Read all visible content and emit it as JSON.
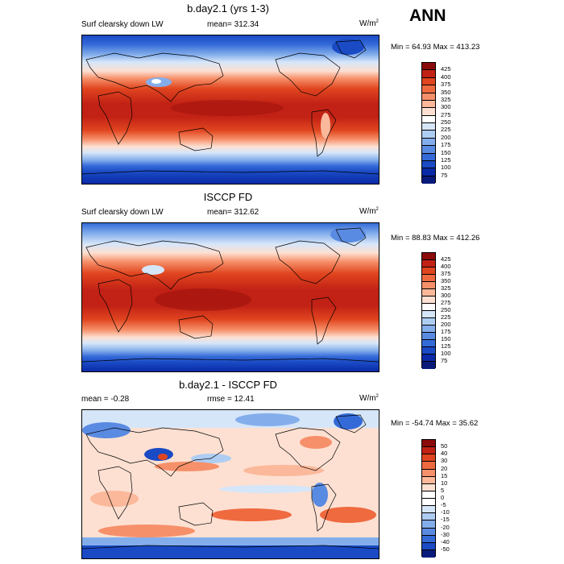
{
  "season": "ANN",
  "panels": [
    {
      "title": "b.day2.1 (yrs 1-3)",
      "variable": "Surf clearsky down LW",
      "stat_label": "mean=",
      "stat_value": "312.34",
      "unit": "W/m",
      "unit_exp": "2",
      "min_label": "Min =",
      "min_value": "64.93",
      "max_label": "Max =",
      "max_value": "413.23",
      "colorbar": {
        "levels": [
          "425",
          "400",
          "375",
          "350",
          "325",
          "300",
          "275",
          "250",
          "225",
          "200",
          "175",
          "150",
          "125",
          "100",
          "75"
        ],
        "colors": [
          "#8b0a0a",
          "#c22215",
          "#e0451f",
          "#ef6a3f",
          "#f6906a",
          "#fbb89a",
          "#fde0d2",
          "#ffffff",
          "#d6e6f9",
          "#aecdf3",
          "#84aeeb",
          "#5a8be2",
          "#346ad8",
          "#1a4ac4",
          "#0a2aa8",
          "#081b7a"
        ]
      }
    },
    {
      "title": "ISCCP FD",
      "variable": "Surf clearsky down LW",
      "stat_label": "mean=",
      "stat_value": "312.62",
      "unit": "W/m",
      "unit_exp": "2",
      "min_label": "Min =",
      "min_value": "88.83",
      "max_label": "Max =",
      "max_value": "412.26",
      "colorbar": {
        "levels": [
          "425",
          "400",
          "375",
          "350",
          "325",
          "300",
          "275",
          "250",
          "225",
          "200",
          "175",
          "150",
          "125",
          "100",
          "75"
        ],
        "colors": [
          "#8b0a0a",
          "#c22215",
          "#e0451f",
          "#ef6a3f",
          "#f6906a",
          "#fbb89a",
          "#fde0d2",
          "#ffffff",
          "#d6e6f9",
          "#aecdf3",
          "#84aeeb",
          "#5a8be2",
          "#346ad8",
          "#1a4ac4",
          "#0a2aa8",
          "#081b7a"
        ]
      }
    },
    {
      "title": "b.day2.1 - ISCCP FD",
      "variable": "",
      "stat_label": "mean =",
      "stat_value": "-0.28",
      "stat2_label": "rmse =",
      "stat2_value": "12.41",
      "unit": "W/m",
      "unit_exp": "2",
      "min_label": "Min =",
      "min_value": "-54.74",
      "max_label": "Max =",
      "max_value": "35.62",
      "colorbar": {
        "levels": [
          "50",
          "40",
          "30",
          "20",
          "15",
          "10",
          "5",
          "0",
          "-5",
          "-10",
          "-15",
          "-20",
          "-30",
          "-40",
          "-50"
        ],
        "colors": [
          "#8b0a0a",
          "#c22215",
          "#e0451f",
          "#ef6a3f",
          "#f6906a",
          "#fbb89a",
          "#fde0d2",
          "#ffffff",
          "#ffffff",
          "#d6e6f9",
          "#aecdf3",
          "#84aeeb",
          "#5a8be2",
          "#346ad8",
          "#1a4ac4",
          "#081b7a"
        ]
      }
    }
  ],
  "chart_data": [
    {
      "type": "heatmap",
      "title": "b.day2.1 (yrs 1-3)",
      "subtitle": "Surf clearsky down LW",
      "units": "W/m2",
      "mean": 312.34,
      "min": 64.93,
      "max": 413.23,
      "contour_levels": [
        75,
        100,
        125,
        150,
        175,
        200,
        225,
        250,
        275,
        300,
        325,
        350,
        375,
        400,
        425
      ],
      "pattern": "zonal: ~380-410 in tropics, decreasing to ~250 at mid-latitudes, ~75-125 over Antarctica and Greenland, low values over Tibetan Plateau"
    },
    {
      "type": "heatmap",
      "title": "ISCCP FD",
      "subtitle": "Surf clearsky down LW",
      "units": "W/m2",
      "mean": 312.62,
      "min": 88.83,
      "max": 412.26,
      "contour_levels": [
        75,
        100,
        125,
        150,
        175,
        200,
        225,
        250,
        275,
        300,
        325,
        350,
        375,
        400,
        425
      ],
      "pattern": "zonal: ~380-410 in tropics, decreasing poleward, lowest over Antarctica"
    },
    {
      "type": "heatmap",
      "title": "b.day2.1 - ISCCP FD",
      "units": "W/m2",
      "mean": -0.28,
      "rmse": 12.41,
      "min": -54.74,
      "max": 35.62,
      "contour_levels": [
        -50,
        -40,
        -30,
        -20,
        -15,
        -10,
        -5,
        0,
        5,
        10,
        15,
        20,
        30,
        40,
        50
      ],
      "pattern": "positive bias over subtropical oceans, negative bias over high-latitude land, Tibet, Andes and Antarctic coast"
    }
  ]
}
